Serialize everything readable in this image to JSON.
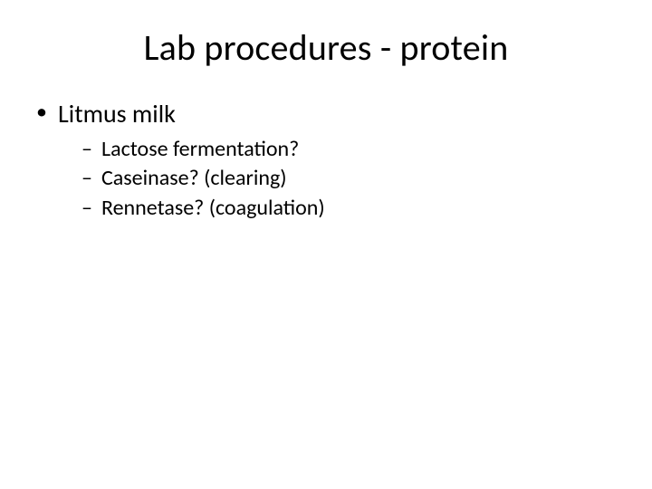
{
  "slide": {
    "title": "Lab procedures - protein",
    "title_fontsize": 40,
    "body_fontsize_l1": 28,
    "body_fontsize_l2": 24,
    "text_color": "#000000",
    "background_color": "#ffffff",
    "bullets": {
      "level1": [
        {
          "text": "Litmus  milk",
          "children": [
            "Lactose fermentation?",
            "Caseinase? (clearing)",
            "Rennetase? (coagulation)"
          ]
        }
      ]
    }
  }
}
